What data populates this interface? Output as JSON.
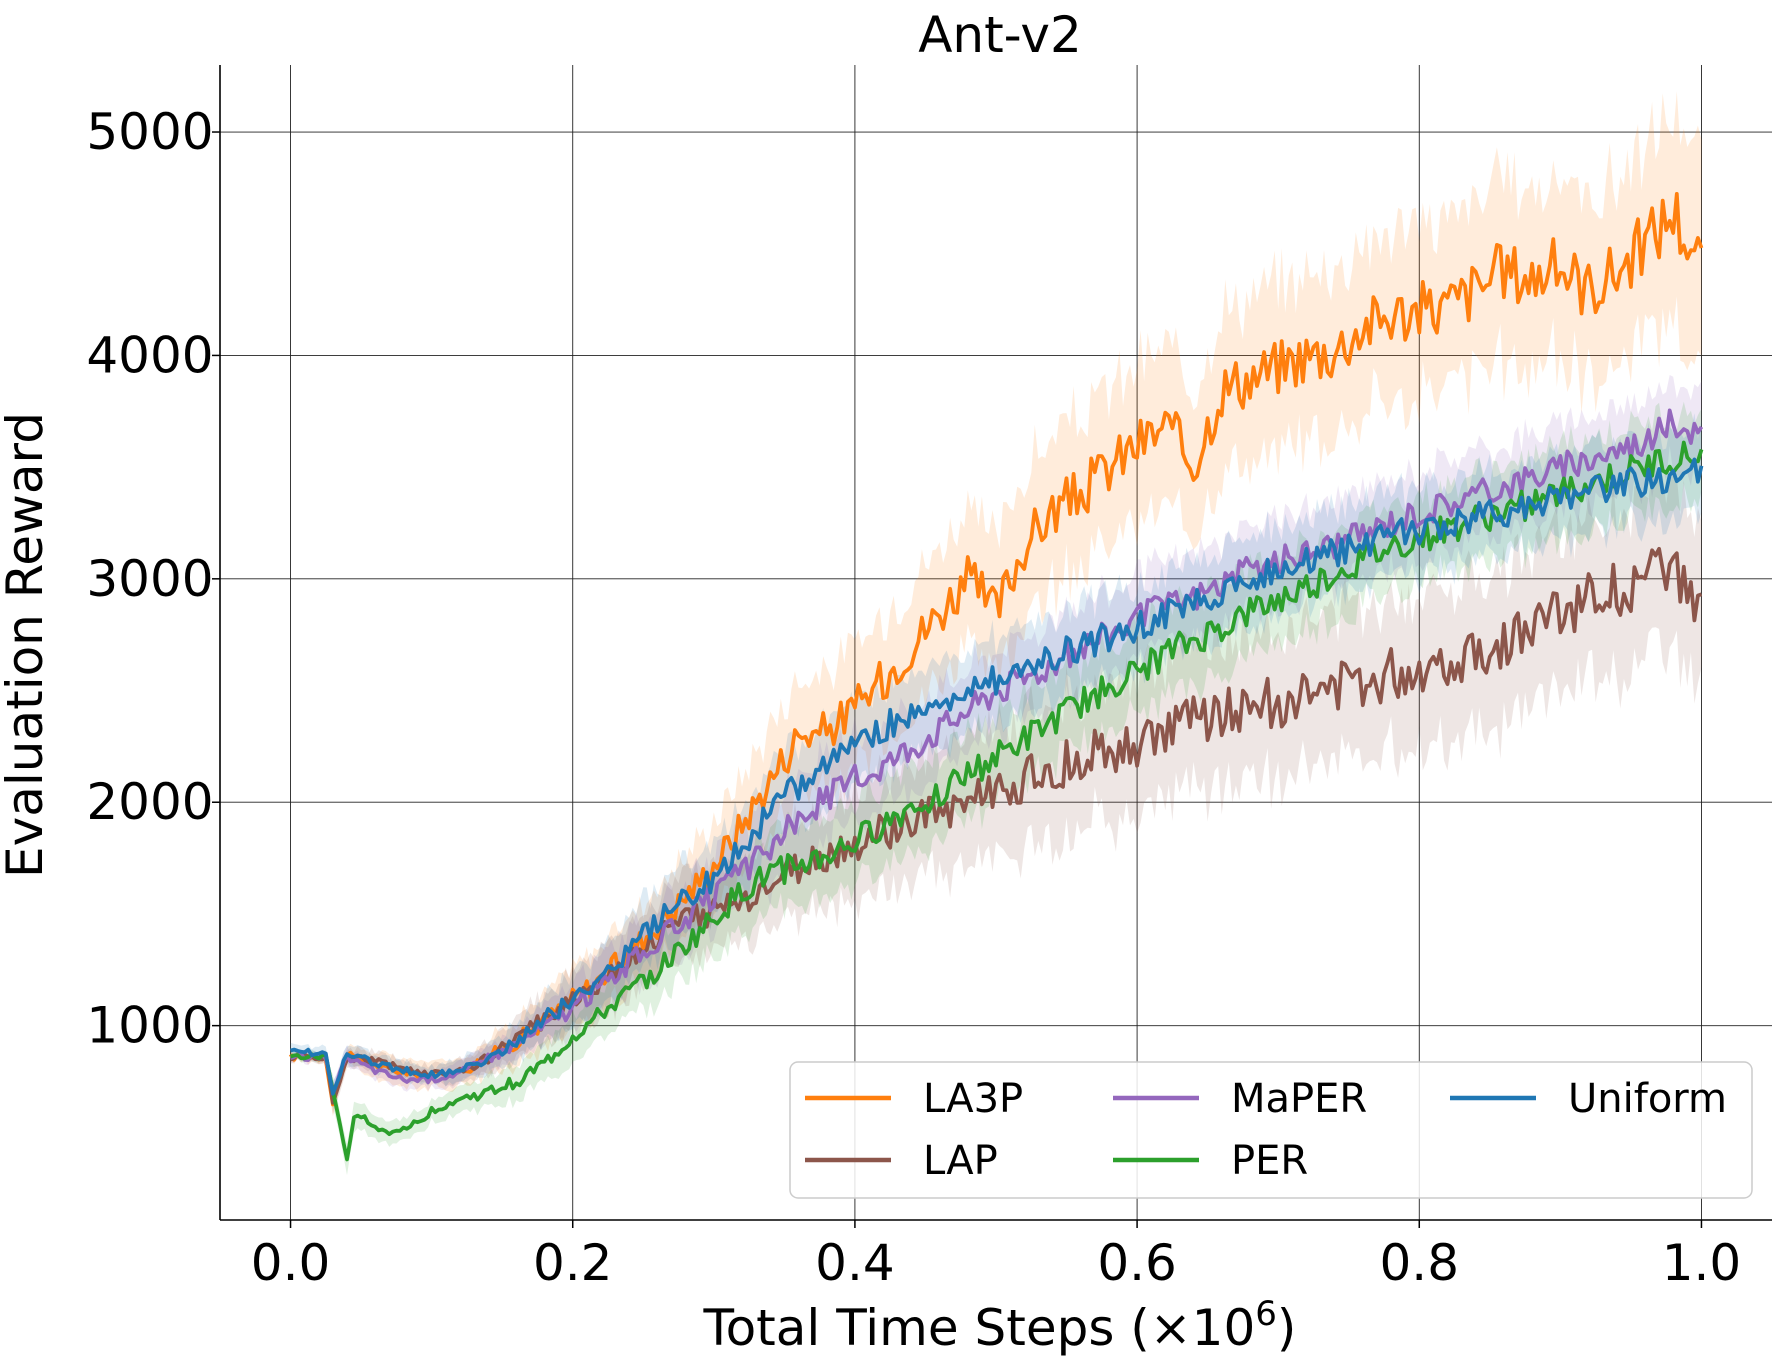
{
  "chart_data": {
    "type": "line",
    "title": "Ant-v2",
    "xlabel": "Total Time Steps (×10⁶)",
    "xlabel_main": "Total Time Steps (×10",
    "xlabel_sup": "6",
    "xlabel_end": ")",
    "ylabel": "Evaluation Reward",
    "xlim": [
      -0.05,
      1.05
    ],
    "ylim": [
      130,
      5300
    ],
    "xticks": [
      0.0,
      0.2,
      0.4,
      0.6,
      0.8,
      1.0
    ],
    "xtick_labels": [
      "0.0",
      "0.2",
      "0.4",
      "0.6",
      "0.8",
      "1.0"
    ],
    "yticks": [
      1000,
      2000,
      3000,
      4000,
      5000
    ],
    "ytick_labels": [
      "1000",
      "2000",
      "3000",
      "4000",
      "5000"
    ],
    "grid": true,
    "legend_position": "lower-right",
    "legend_columns": 3,
    "series": [
      {
        "name": "LA3P",
        "color": "#ff7f0e",
        "x": [
          0.0,
          0.025,
          0.03,
          0.04,
          0.06,
          0.08,
          0.1,
          0.12,
          0.14,
          0.16,
          0.18,
          0.2,
          0.22,
          0.24,
          0.26,
          0.28,
          0.3,
          0.32,
          0.34,
          0.36,
          0.38,
          0.4,
          0.42,
          0.44,
          0.46,
          0.48,
          0.5,
          0.52,
          0.54,
          0.56,
          0.58,
          0.6,
          0.62,
          0.64,
          0.66,
          0.68,
          0.7,
          0.72,
          0.74,
          0.76,
          0.78,
          0.8,
          0.82,
          0.84,
          0.86,
          0.88,
          0.9,
          0.92,
          0.94,
          0.96,
          0.98,
          1.0
        ],
        "mean": [
          860,
          860,
          650,
          870,
          820,
          790,
          780,
          790,
          860,
          930,
          1020,
          1120,
          1210,
          1330,
          1450,
          1580,
          1720,
          1900,
          2100,
          2300,
          2320,
          2420,
          2550,
          2700,
          2850,
          3000,
          2850,
          3150,
          3300,
          3380,
          3500,
          3600,
          3680,
          3520,
          3850,
          3900,
          3950,
          4000,
          4020,
          4130,
          4180,
          4200,
          4220,
          4300,
          4380,
          4350,
          4400,
          4300,
          4380,
          4500,
          4650,
          4400
        ],
        "std": [
          20,
          20,
          60,
          40,
          60,
          60,
          60,
          60,
          80,
          100,
          120,
          140,
          150,
          160,
          170,
          180,
          200,
          220,
          240,
          260,
          260,
          270,
          280,
          290,
          300,
          310,
          320,
          330,
          330,
          340,
          340,
          350,
          350,
          360,
          360,
          360,
          360,
          370,
          370,
          380,
          380,
          380,
          390,
          390,
          400,
          400,
          400,
          400,
          410,
          420,
          450,
          450
        ]
      },
      {
        "name": "LAP",
        "color": "#8c564b",
        "x": [
          0.0,
          0.025,
          0.03,
          0.04,
          0.06,
          0.08,
          0.1,
          0.12,
          0.14,
          0.16,
          0.18,
          0.2,
          0.22,
          0.24,
          0.26,
          0.28,
          0.3,
          0.32,
          0.34,
          0.36,
          0.38,
          0.4,
          0.42,
          0.44,
          0.46,
          0.48,
          0.5,
          0.52,
          0.54,
          0.56,
          0.58,
          0.6,
          0.62,
          0.64,
          0.66,
          0.68,
          0.7,
          0.72,
          0.74,
          0.76,
          0.78,
          0.8,
          0.82,
          0.84,
          0.86,
          0.88,
          0.9,
          0.92,
          0.94,
          0.96,
          0.98,
          1.0
        ],
        "mean": [
          860,
          860,
          650,
          860,
          840,
          810,
          780,
          800,
          850,
          940,
          1030,
          1120,
          1200,
          1300,
          1400,
          1470,
          1520,
          1560,
          1620,
          1700,
          1760,
          1800,
          1860,
          1900,
          1960,
          2000,
          2050,
          2100,
          2150,
          2200,
          2230,
          2260,
          2320,
          2360,
          2400,
          2420,
          2450,
          2480,
          2500,
          2540,
          2580,
          2600,
          2640,
          2680,
          2720,
          2780,
          2850,
          2900,
          2950,
          3000,
          3020,
          2870
        ],
        "std": [
          20,
          20,
          60,
          40,
          40,
          40,
          40,
          50,
          70,
          90,
          110,
          130,
          150,
          160,
          170,
          180,
          190,
          200,
          210,
          220,
          230,
          240,
          250,
          260,
          270,
          280,
          290,
          300,
          300,
          300,
          310,
          310,
          310,
          320,
          320,
          320,
          330,
          330,
          330,
          340,
          340,
          340,
          340,
          350,
          350,
          350,
          350,
          350,
          360,
          360,
          360,
          360
        ]
      },
      {
        "name": "MaPER",
        "color": "#9467bd",
        "x": [
          0.0,
          0.025,
          0.03,
          0.04,
          0.06,
          0.08,
          0.1,
          0.12,
          0.14,
          0.16,
          0.18,
          0.2,
          0.22,
          0.24,
          0.26,
          0.28,
          0.3,
          0.32,
          0.34,
          0.36,
          0.38,
          0.4,
          0.42,
          0.44,
          0.46,
          0.48,
          0.5,
          0.52,
          0.54,
          0.56,
          0.58,
          0.6,
          0.62,
          0.64,
          0.66,
          0.68,
          0.7,
          0.72,
          0.74,
          0.76,
          0.78,
          0.8,
          0.82,
          0.84,
          0.86,
          0.88,
          0.9,
          0.92,
          0.94,
          0.96,
          0.98,
          1.0
        ],
        "mean": [
          860,
          860,
          700,
          860,
          800,
          760,
          760,
          790,
          850,
          920,
          1000,
          1080,
          1180,
          1280,
          1380,
          1480,
          1580,
          1680,
          1800,
          1920,
          2030,
          2100,
          2170,
          2250,
          2330,
          2420,
          2500,
          2560,
          2620,
          2700,
          2760,
          2820,
          2880,
          2920,
          2980,
          3040,
          3080,
          3120,
          3160,
          3200,
          3260,
          3300,
          3340,
          3380,
          3420,
          3460,
          3500,
          3540,
          3580,
          3620,
          3700,
          3650
        ],
        "std": [
          20,
          20,
          40,
          40,
          40,
          40,
          40,
          50,
          60,
          70,
          90,
          110,
          130,
          140,
          150,
          160,
          170,
          180,
          190,
          190,
          190,
          190,
          190,
          190,
          190,
          190,
          190,
          190,
          190,
          190,
          190,
          190,
          190,
          190,
          190,
          190,
          190,
          190,
          190,
          190,
          190,
          190,
          190,
          190,
          190,
          190,
          190,
          190,
          190,
          190,
          190,
          190
        ]
      },
      {
        "name": "PER",
        "color": "#2ca02c",
        "x": [
          0.0,
          0.025,
          0.03,
          0.04,
          0.045,
          0.05,
          0.06,
          0.07,
          0.08,
          0.09,
          0.1,
          0.12,
          0.14,
          0.16,
          0.18,
          0.2,
          0.22,
          0.24,
          0.26,
          0.28,
          0.3,
          0.32,
          0.34,
          0.36,
          0.38,
          0.4,
          0.42,
          0.44,
          0.46,
          0.48,
          0.5,
          0.52,
          0.54,
          0.56,
          0.58,
          0.6,
          0.62,
          0.64,
          0.66,
          0.68,
          0.7,
          0.72,
          0.74,
          0.76,
          0.78,
          0.8,
          0.82,
          0.84,
          0.86,
          0.88,
          0.9,
          0.92,
          0.94,
          0.96,
          0.98,
          1.0
        ],
        "mean": [
          860,
          860,
          720,
          400,
          580,
          600,
          540,
          510,
          550,
          560,
          620,
          670,
          700,
          750,
          830,
          950,
          1050,
          1150,
          1250,
          1360,
          1480,
          1600,
          1680,
          1720,
          1760,
          1820,
          1900,
          1980,
          2050,
          2120,
          2200,
          2280,
          2360,
          2440,
          2520,
          2580,
          2660,
          2720,
          2780,
          2850,
          2900,
          2960,
          3020,
          3080,
          3140,
          3180,
          3220,
          3260,
          3300,
          3340,
          3380,
          3420,
          3460,
          3500,
          3540,
          3550
        ],
        "std": [
          20,
          20,
          60,
          60,
          60,
          60,
          50,
          50,
          50,
          50,
          50,
          60,
          70,
          80,
          90,
          100,
          110,
          120,
          140,
          150,
          160,
          170,
          180,
          180,
          190,
          190,
          190,
          190,
          190,
          190,
          190,
          190,
          190,
          190,
          190,
          190,
          200,
          200,
          200,
          200,
          200,
          200,
          200,
          200,
          200,
          200,
          200,
          200,
          200,
          200,
          200,
          200,
          200,
          200,
          200,
          200
        ]
      },
      {
        "name": "Uniform",
        "color": "#1f77b4",
        "x": [
          0.0,
          0.025,
          0.03,
          0.04,
          0.06,
          0.08,
          0.1,
          0.12,
          0.14,
          0.16,
          0.18,
          0.2,
          0.22,
          0.24,
          0.26,
          0.28,
          0.3,
          0.32,
          0.34,
          0.36,
          0.38,
          0.4,
          0.42,
          0.44,
          0.46,
          0.48,
          0.5,
          0.52,
          0.54,
          0.56,
          0.58,
          0.6,
          0.62,
          0.64,
          0.66,
          0.68,
          0.7,
          0.72,
          0.74,
          0.76,
          0.78,
          0.8,
          0.82,
          0.84,
          0.86,
          0.88,
          0.9,
          0.92,
          0.94,
          0.96,
          0.98,
          1.0
        ],
        "mean": [
          880,
          880,
          700,
          880,
          830,
          800,
          780,
          800,
          850,
          930,
          1030,
          1120,
          1220,
          1340,
          1460,
          1570,
          1660,
          1800,
          1950,
          2080,
          2180,
          2260,
          2330,
          2400,
          2460,
          2500,
          2550,
          2600,
          2650,
          2700,
          2740,
          2780,
          2840,
          2880,
          2940,
          3000,
          3040,
          3080,
          3120,
          3160,
          3200,
          3220,
          3240,
          3280,
          3300,
          3320,
          3360,
          3400,
          3420,
          3440,
          3460,
          3480
        ],
        "std": [
          30,
          30,
          50,
          40,
          40,
          40,
          40,
          50,
          60,
          80,
          100,
          120,
          130,
          140,
          150,
          160,
          170,
          180,
          190,
          190,
          190,
          190,
          190,
          190,
          190,
          190,
          190,
          190,
          190,
          190,
          190,
          190,
          190,
          190,
          190,
          190,
          190,
          190,
          190,
          190,
          190,
          190,
          190,
          190,
          190,
          190,
          190,
          190,
          190,
          190,
          190,
          190
        ]
      }
    ]
  }
}
